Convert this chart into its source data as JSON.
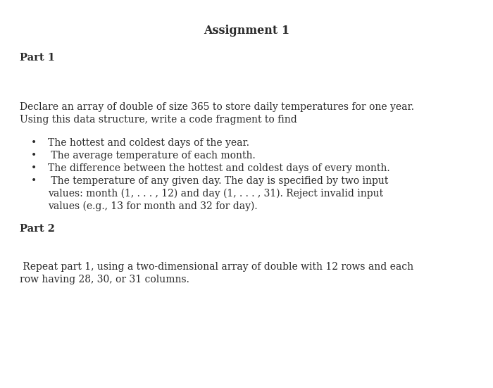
{
  "title": "Assignment 1",
  "part1_label": "Part 1",
  "part2_label": "Part 2",
  "body_line1": "Declare an array of double of size 365 to store daily temperatures for one year.",
  "body_line2": "Using this data structure, write a code fragment to find",
  "bullet1": "The hottest and coldest days of the year.",
  "bullet2": " The average temperature of each month.",
  "bullet3": "The difference between the hottest and coldest days of every month.",
  "bullet4a": " The temperature of any given day. The day is specified by two input",
  "bullet4b": "values: month (1, . . . , 12) and day (1, . . . , 31). Reject invalid input",
  "bullet4c": "values (e.g., 13 for month and 32 for day).",
  "part2_line1": " Repeat part 1, using a two-dimensional array of double with 12 rows and each",
  "part2_line2": "row having 28, 30, or 31 columns.",
  "bg_color": "#ffffff",
  "text_color": "#2a2a2a",
  "font_size_title": 11.5,
  "font_size_body": 10.0,
  "font_size_part": 10.5
}
